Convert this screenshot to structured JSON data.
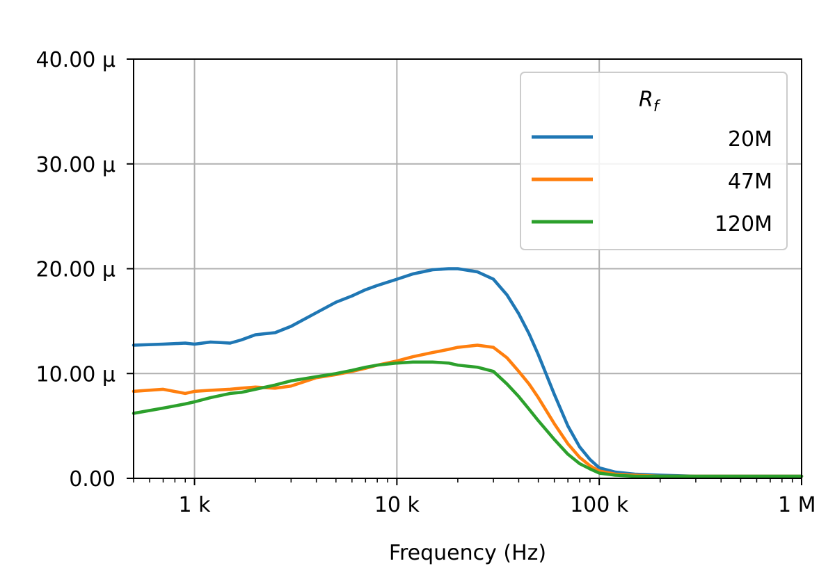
{
  "chart_data": {
    "type": "line",
    "title": "",
    "xlabel": "Frequency (Hz)",
    "ylabel": "",
    "x_scale": "log",
    "xlim": [
      500,
      1000000
    ],
    "ylim": [
      0,
      4e-05
    ],
    "grid": true,
    "x_ticks": [
      {
        "value": 1000,
        "label": "1 k"
      },
      {
        "value": 10000,
        "label": "10 k"
      },
      {
        "value": 100000,
        "label": "100 k"
      },
      {
        "value": 1000000,
        "label": "1 M"
      }
    ],
    "y_ticks": [
      {
        "value": 0,
        "label": "0.00"
      },
      {
        "value": 1e-05,
        "label": "10.00 μ"
      },
      {
        "value": 2e-05,
        "label": "20.00 μ"
      },
      {
        "value": 3e-05,
        "label": "30.00 μ"
      },
      {
        "value": 4e-05,
        "label": "40.00 μ"
      }
    ],
    "legend": {
      "position": "top-right",
      "title_main": "R",
      "title_sub": "f"
    },
    "series": [
      {
        "name": "20M",
        "color": "#1f77b4",
        "x": [
          500,
          700,
          900,
          1000,
          1200,
          1500,
          1700,
          2000,
          2500,
          3000,
          4000,
          5000,
          6000,
          7000,
          8000,
          10000,
          12000,
          15000,
          18000,
          20000,
          25000,
          30000,
          35000,
          40000,
          45000,
          50000,
          60000,
          70000,
          80000,
          90000,
          100000,
          120000,
          150000,
          200000,
          300000,
          500000,
          800000,
          1000000
        ],
        "y": [
          1.27e-05,
          1.28e-05,
          1.29e-05,
          1.28e-05,
          1.3e-05,
          1.29e-05,
          1.32e-05,
          1.37e-05,
          1.39e-05,
          1.45e-05,
          1.58e-05,
          1.68e-05,
          1.74e-05,
          1.8e-05,
          1.84e-05,
          1.9e-05,
          1.95e-05,
          1.99e-05,
          2e-05,
          2e-05,
          1.97e-05,
          1.9e-05,
          1.75e-05,
          1.57e-05,
          1.38e-05,
          1.18e-05,
          8e-06,
          5e-06,
          3e-06,
          1.8e-06,
          1e-06,
          6e-07,
          4e-07,
          3e-07,
          2e-07,
          2e-07,
          2e-07,
          2e-07
        ]
      },
      {
        "name": "47M",
        "color": "#ff7f0e",
        "x": [
          500,
          700,
          900,
          1000,
          1200,
          1500,
          1700,
          2000,
          2500,
          3000,
          4000,
          5000,
          6000,
          7000,
          8000,
          10000,
          12000,
          15000,
          18000,
          20000,
          25000,
          30000,
          35000,
          40000,
          45000,
          50000,
          60000,
          70000,
          80000,
          90000,
          100000,
          120000,
          150000,
          200000,
          300000,
          500000,
          800000,
          1000000
        ],
        "y": [
          8.3e-06,
          8.5e-06,
          8.1e-06,
          8.3e-06,
          8.4e-06,
          8.5e-06,
          8.6e-06,
          8.7e-06,
          8.6e-06,
          8.8e-06,
          9.6e-06,
          9.9e-06,
          1.02e-05,
          1.05e-05,
          1.08e-05,
          1.12e-05,
          1.16e-05,
          1.2e-05,
          1.23e-05,
          1.25e-05,
          1.27e-05,
          1.25e-05,
          1.15e-05,
          1.02e-05,
          9e-06,
          7.7e-06,
          5.2e-06,
          3.3e-06,
          2e-06,
          1.2e-06,
          7e-07,
          4e-07,
          3e-07,
          2e-07,
          2e-07,
          2e-07,
          2e-07,
          2e-07
        ]
      },
      {
        "name": "120M",
        "color": "#2ca02c",
        "x": [
          500,
          700,
          900,
          1000,
          1200,
          1500,
          1700,
          2000,
          2500,
          3000,
          4000,
          5000,
          6000,
          7000,
          8000,
          10000,
          12000,
          15000,
          18000,
          20000,
          25000,
          30000,
          35000,
          40000,
          45000,
          50000,
          60000,
          70000,
          80000,
          90000,
          100000,
          120000,
          150000,
          200000,
          300000,
          500000,
          800000,
          1000000
        ],
        "y": [
          6.2e-06,
          6.7e-06,
          7.1e-06,
          7.3e-06,
          7.7e-06,
          8.1e-06,
          8.2e-06,
          8.5e-06,
          8.9e-06,
          9.3e-06,
          9.7e-06,
          1e-05,
          1.03e-05,
          1.06e-05,
          1.08e-05,
          1.1e-05,
          1.11e-05,
          1.11e-05,
          1.1e-05,
          1.08e-05,
          1.06e-05,
          1.02e-05,
          9e-06,
          7.8e-06,
          6.6e-06,
          5.5e-06,
          3.7e-06,
          2.3e-06,
          1.4e-06,
          9e-07,
          5e-07,
          3e-07,
          2e-07,
          2e-07,
          2e-07,
          2e-07,
          2e-07,
          2e-07
        ]
      }
    ]
  }
}
